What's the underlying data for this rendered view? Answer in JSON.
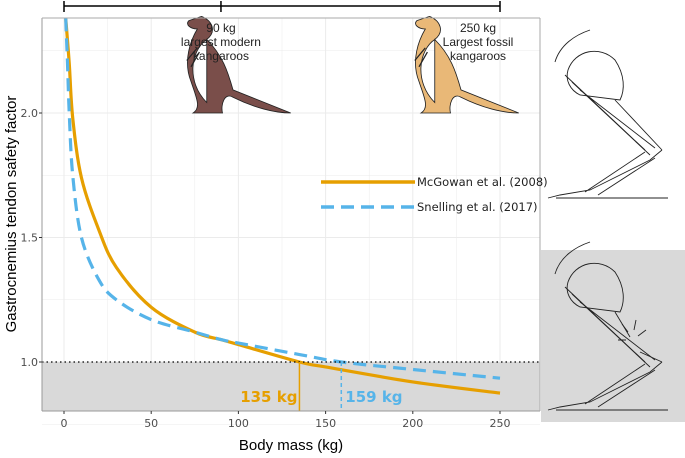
{
  "chart_data": {
    "type": "line",
    "title": "",
    "xlabel": "Body mass (kg)",
    "ylabel": "Gastrocnemius tendon safety factor",
    "xlim": [
      -12,
      262
    ],
    "ylim": [
      0.81,
      2.38
    ],
    "xticks": [
      0,
      50,
      100,
      150,
      200,
      250
    ],
    "yticks": [
      1.0,
      1.5,
      2.0
    ],
    "xtick_labels": [
      "0",
      "50",
      "100",
      "150",
      "200",
      "250"
    ],
    "ytick_labels": [
      "1.0",
      "1.5",
      "2.0"
    ],
    "grid": true,
    "legend_position": "center-right",
    "series": [
      {
        "name": "McGowan et al. (2008)",
        "color": "#E69F00",
        "style": "solid",
        "x": [
          1,
          3,
          5,
          10,
          20,
          30,
          50,
          75,
          90,
          100,
          135,
          150,
          200,
          250
        ],
        "y": [
          2.38,
          2.2,
          1.98,
          1.74,
          1.53,
          1.38,
          1.22,
          1.12,
          1.09,
          1.07,
          1.0,
          0.98,
          0.92,
          0.875
        ]
      },
      {
        "name": "Snelling et al. (2017)",
        "color": "#56B4E9",
        "style": "dashed",
        "x": [
          1,
          2,
          3,
          5,
          10,
          20,
          30,
          50,
          75,
          90,
          100,
          135,
          159,
          200,
          250
        ],
        "y": [
          2.38,
          2.2,
          2.0,
          1.75,
          1.5,
          1.33,
          1.25,
          1.17,
          1.12,
          1.09,
          1.076,
          1.03,
          1.0,
          0.97,
          0.935
        ]
      }
    ],
    "reference_line": {
      "y": 1.0,
      "style": "dotted"
    },
    "failure_region": {
      "below_y": 1.0,
      "color": "#D9D9D9"
    },
    "thresholds": [
      {
        "x": 135,
        "label": "135 kg",
        "color": "#E69F00"
      },
      {
        "x": 159,
        "label": "159 kg",
        "color": "#56B4E9"
      }
    ],
    "bracket": {
      "x": [
        0,
        90,
        250
      ]
    },
    "annotations": [
      {
        "x": 90,
        "lines": [
          "90 kg",
          "largest modern",
          "kangaroos"
        ]
      },
      {
        "x": 250,
        "lines": [
          "250 kg",
          "Largest fossil",
          "kangaroos"
        ]
      }
    ],
    "illustration_colors": {
      "modern_kangaroo": "#7A4E4A",
      "fossil_kangaroo": "#E9B877"
    }
  }
}
